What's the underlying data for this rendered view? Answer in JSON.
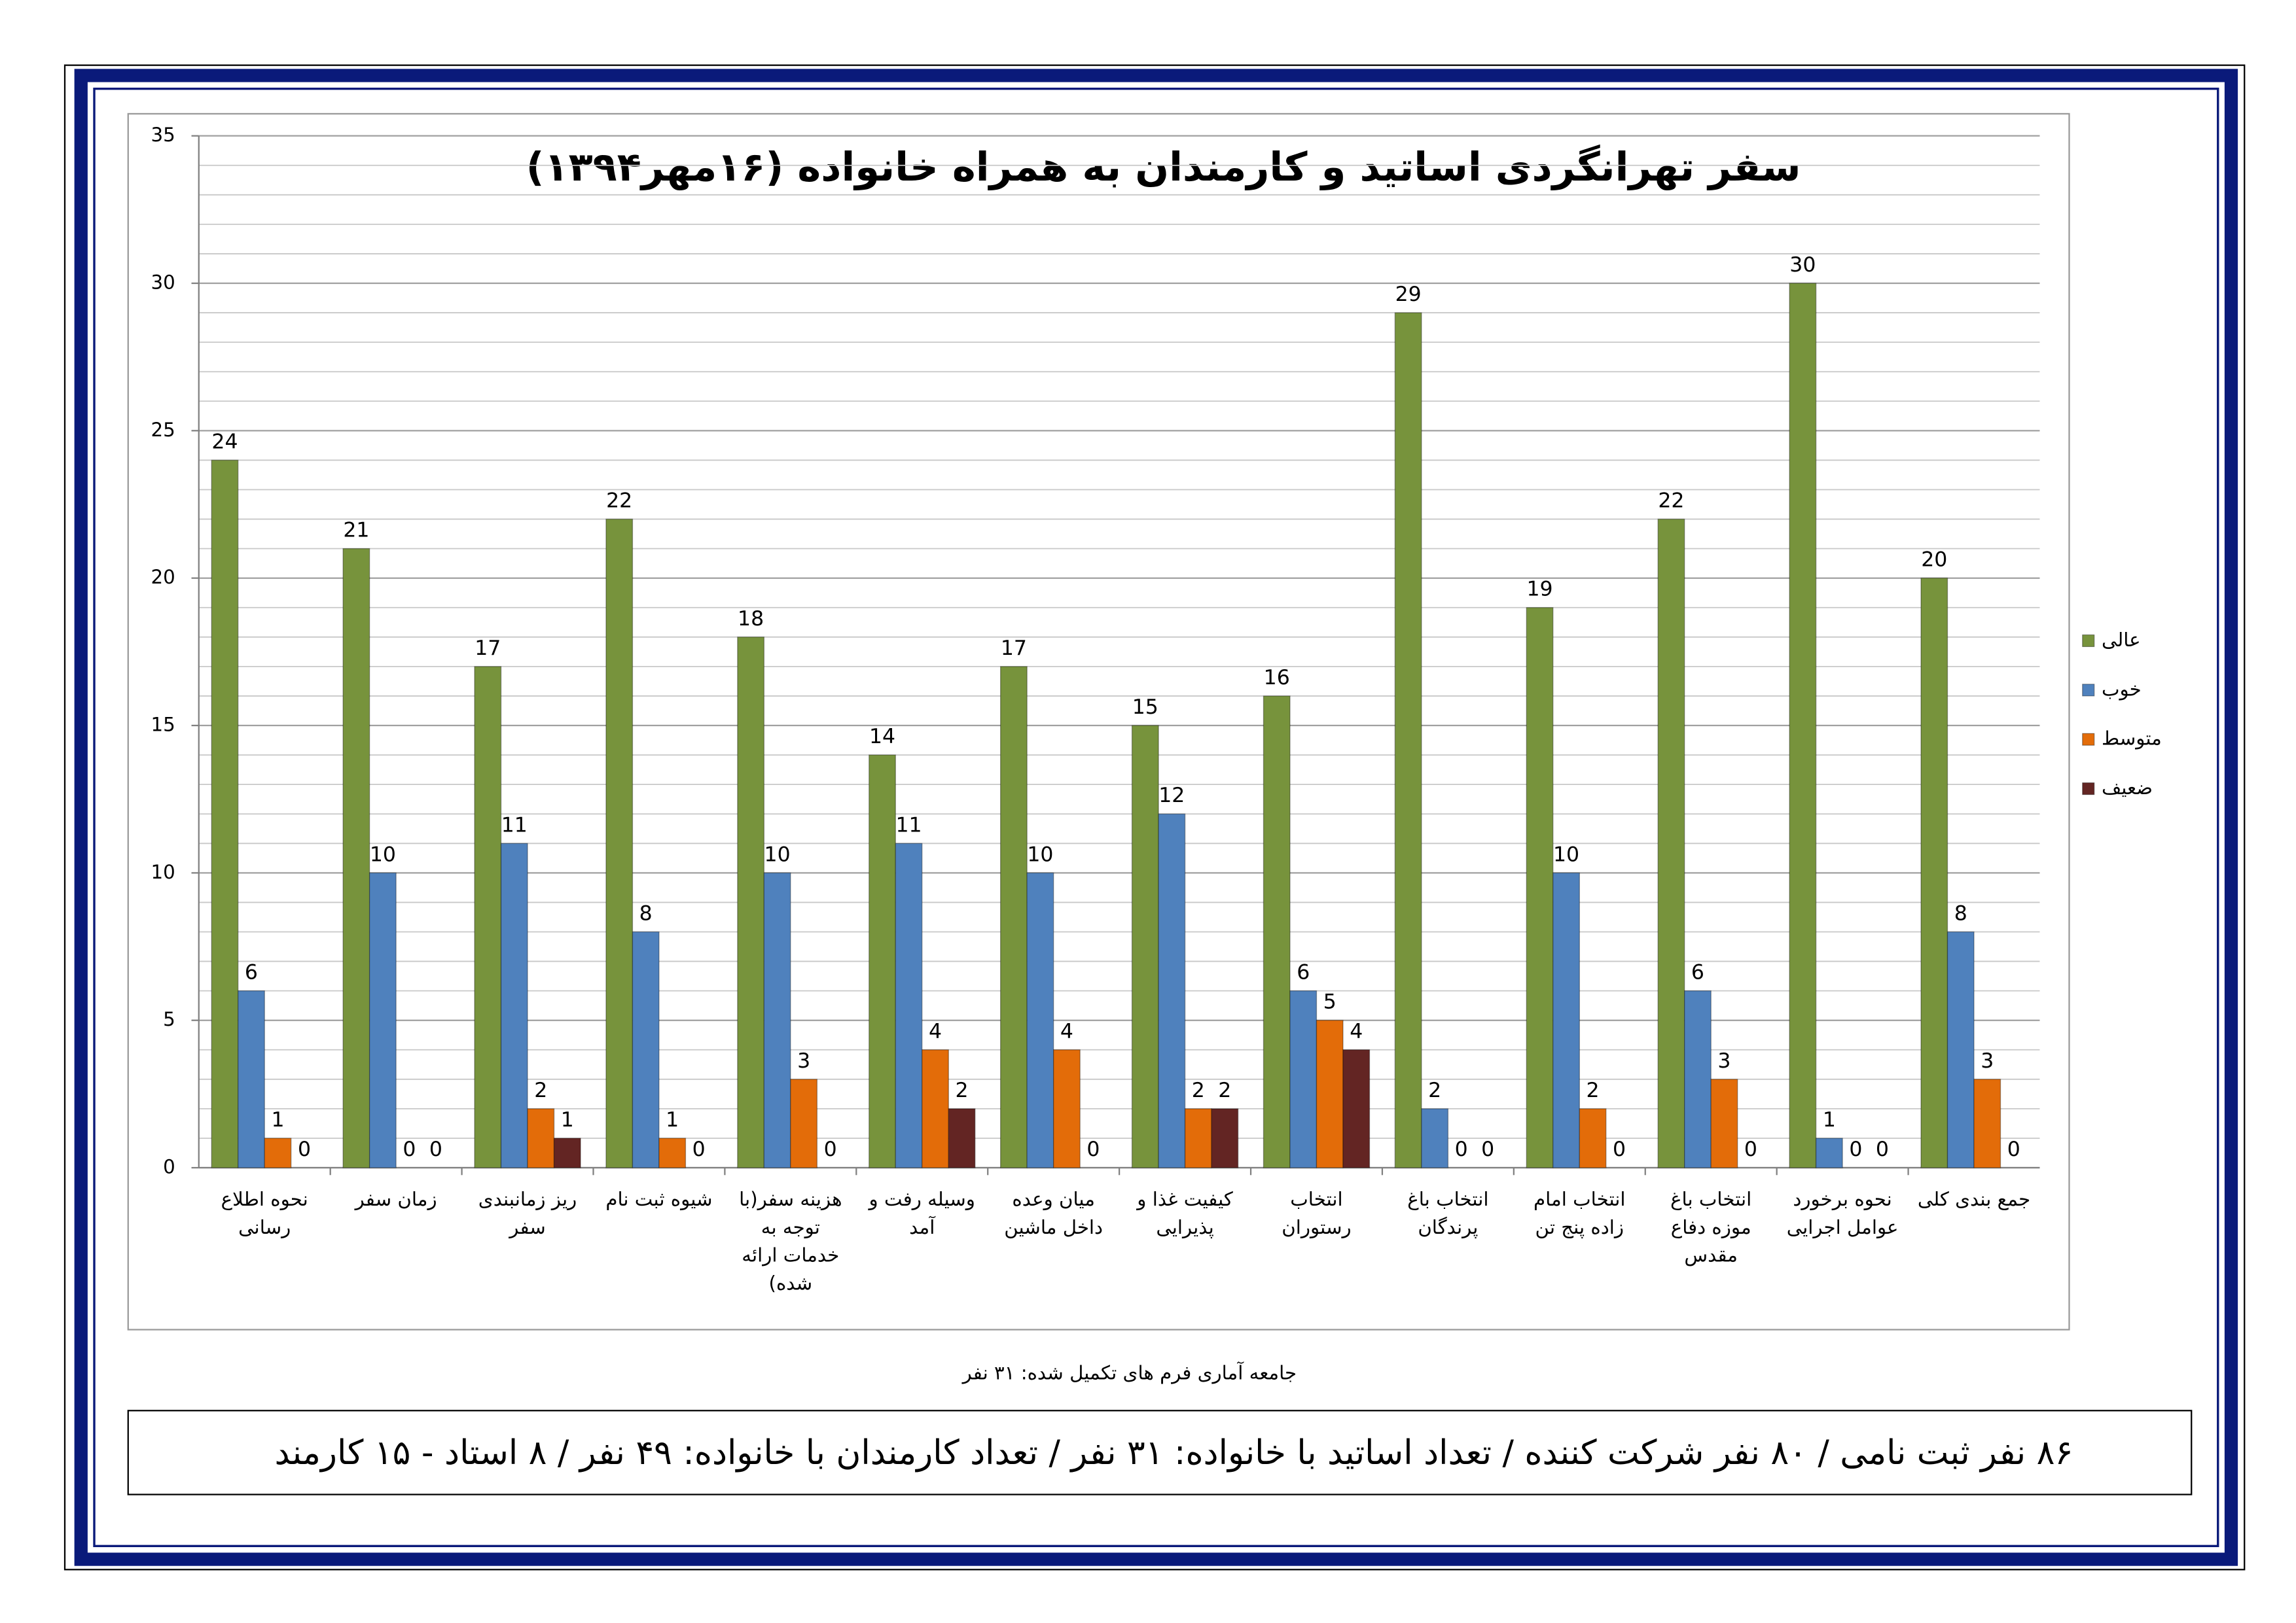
{
  "chart_data": {
    "type": "bar",
    "title": "سفر تهرانگردی اساتید و کارمندان به همراه خانواده (۱۶مهر۱۳۹۴)",
    "categories": [
      [
        "نحوه اطلاع",
        "رسانی"
      ],
      [
        "زمان سفر"
      ],
      [
        "ریز زمانبندی",
        "سفر"
      ],
      [
        "شیوه ثبت نام"
      ],
      [
        "هزینه سفر(با",
        "توجه به",
        "خدمات ارائه",
        "شده)"
      ],
      [
        "وسیله رفت و",
        "آمد"
      ],
      [
        "میان وعده",
        "داخل ماشین"
      ],
      [
        "کیفیت غذا و",
        "پذیرایی"
      ],
      [
        "انتخاب",
        "رستوران"
      ],
      [
        "انتخاب باغ",
        "پرندگان"
      ],
      [
        "انتخاب امام",
        "زاده پنج تن"
      ],
      [
        "انتخاب باغ",
        "موزه دفاع",
        "مقدس"
      ],
      [
        "نحوه برخورد",
        "عوامل اجرایی"
      ],
      [
        "جمع بندی کلی"
      ]
    ],
    "series": [
      {
        "name": "عالی",
        "color": "#77933c",
        "values": [
          24,
          21,
          17,
          22,
          18,
          14,
          17,
          15,
          16,
          29,
          19,
          22,
          30,
          20
        ]
      },
      {
        "name": "خوب",
        "color": "#4f81bd",
        "values": [
          6,
          10,
          11,
          8,
          10,
          11,
          10,
          12,
          6,
          2,
          10,
          6,
          1,
          8
        ]
      },
      {
        "name": "متوسط",
        "color": "#e36c09",
        "values": [
          1,
          0,
          2,
          1,
          3,
          4,
          4,
          2,
          5,
          0,
          2,
          3,
          0,
          3
        ]
      },
      {
        "name": "ضعیف",
        "color": "#632523",
        "values": [
          0,
          0,
          1,
          0,
          0,
          2,
          0,
          2,
          4,
          0,
          0,
          0,
          0,
          0
        ]
      }
    ],
    "ylim": [
      0,
      35
    ],
    "yticks": [
      0,
      5,
      10,
      15,
      20,
      25,
      30,
      35
    ],
    "grid": true,
    "legend": "right",
    "data_labels": true
  },
  "footer": {
    "note": "جامعه آماری فرم های تکمیل شده: ۳۱ نفر",
    "summary": "۸۶ نفر ثبت نامی / ۸۰ نفر شرکت کننده / تعداد اساتید با خانواده: ۳۱ نفر / تعداد کارمندان با خانواده: ۴۹ نفر / ۸ استاد - ۱۵ کارمند"
  }
}
